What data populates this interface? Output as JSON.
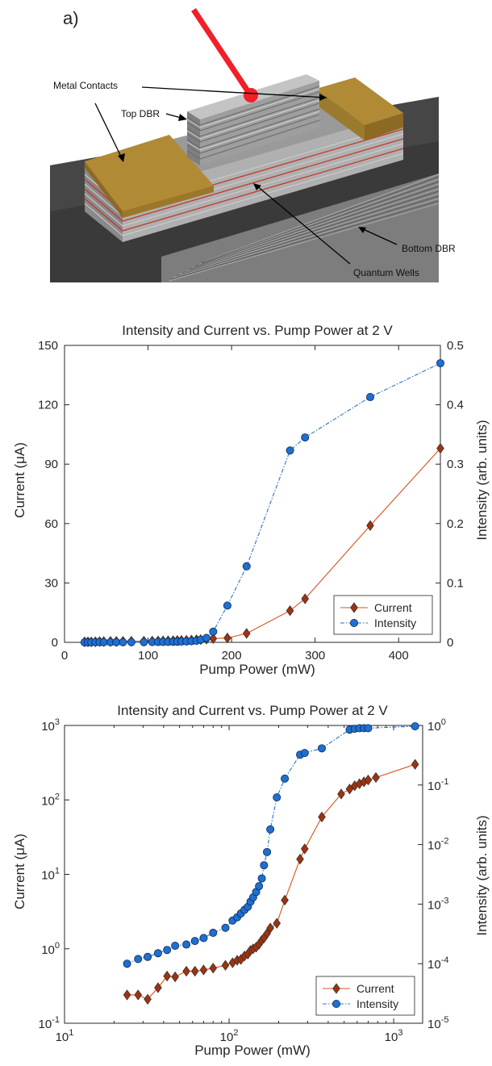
{
  "figure": {
    "panel_a": {
      "label": "a)",
      "annotations": {
        "metal_contacts": "Metal Contacts",
        "top_dbr": "Top DBR",
        "bottom_dbr": "Bottom DBR",
        "quantum_wells": "Quantum Wells"
      },
      "colors": {
        "laser": "#f0202a",
        "contact": "#b18a36",
        "substrate": "#3b3b3b",
        "dbr": "#8c8c8c",
        "quantum_well": "#c0392b"
      }
    }
  },
  "chart_data": [
    {
      "type": "line",
      "title": "Intensity and Current vs. Pump Power at 2 V",
      "xlabel": "Pump Power (mW)",
      "ylabel_left": "Current (μA)",
      "ylabel_right": "Intensity (arb. units)",
      "xlim": [
        0,
        450
      ],
      "ylim_left": [
        0,
        150
      ],
      "ylim_right": [
        0,
        0.5
      ],
      "xticks": [
        "0",
        "100",
        "200",
        "300",
        "400"
      ],
      "yticks_left": [
        "0",
        "30",
        "60",
        "90",
        "120",
        "150"
      ],
      "yticks_right": [
        "0",
        "0.1",
        "0.2",
        "0.3",
        "0.4",
        "0.5"
      ],
      "legend_position": "bottom-right",
      "series": [
        {
          "name": "Current",
          "axis": "left",
          "color": "#d95319",
          "marker_color": "#a0320e",
          "marker": "diamond",
          "line": "solid",
          "x": [
            24,
            28,
            32,
            37,
            42,
            47,
            55,
            62,
            70,
            80,
            95,
            105,
            112,
            118,
            124,
            130,
            135,
            140,
            146,
            152,
            158,
            163,
            170,
            178,
            195,
            218,
            270,
            288,
            366,
            450
          ],
          "y": [
            0.24,
            0.24,
            0.21,
            0.3,
            0.43,
            0.42,
            0.5,
            0.5,
            0.52,
            0.55,
            0.6,
            0.65,
            0.7,
            0.72,
            0.8,
            0.85,
            0.95,
            1.0,
            1.05,
            1.15,
            1.3,
            1.4,
            1.6,
            1.9,
            2.2,
            4.5,
            16,
            22,
            59,
            98
          ]
        },
        {
          "name": "Intensity",
          "axis": "right",
          "color": "#2a72c8",
          "marker_color": "#1f6fd0",
          "marker": "circle",
          "line": "dashdot",
          "x": [
            24,
            28,
            32,
            37,
            42,
            47,
            55,
            62,
            70,
            80,
            95,
            105,
            112,
            118,
            124,
            130,
            135,
            140,
            146,
            152,
            158,
            163,
            170,
            178,
            195,
            218,
            270,
            288,
            366,
            450
          ],
          "y": [
            0.0001,
            0.00012,
            0.00013,
            0.00015,
            0.00017,
            0.0002,
            0.00021,
            0.00024,
            0.00027,
            0.00033,
            0.0004,
            0.00053,
            0.0006,
            0.0007,
            0.0008,
            0.0009,
            0.0011,
            0.0013,
            0.0016,
            0.002,
            0.0027,
            0.0045,
            0.0075,
            0.018,
            0.062,
            0.128,
            0.323,
            0.345,
            0.413,
            0.47
          ]
        }
      ]
    },
    {
      "type": "line",
      "title": "Intensity and Current vs. Pump Power at 2 V",
      "xlabel": "Pump Power (mW)",
      "ylabel_left": "Current (μA)",
      "ylabel_right": "Intensity (arb. units)",
      "xscale": "log",
      "yscale": "log",
      "xlim": [
        10,
        1500
      ],
      "ylim_left": [
        0.1,
        1000
      ],
      "ylim_right": [
        1e-05,
        1
      ],
      "xticks": [
        {
          "base": "10",
          "exp": "1"
        },
        {
          "base": "10",
          "exp": "2"
        },
        {
          "base": "10",
          "exp": "3"
        }
      ],
      "yticks_left": [
        {
          "base": "10",
          "exp": "-1"
        },
        {
          "base": "10",
          "exp": "0"
        },
        {
          "base": "10",
          "exp": "1"
        },
        {
          "base": "10",
          "exp": "2"
        },
        {
          "base": "10",
          "exp": "3"
        }
      ],
      "yticks_right": [
        {
          "base": "10",
          "exp": "-5"
        },
        {
          "base": "10",
          "exp": "-4"
        },
        {
          "base": "10",
          "exp": "-3"
        },
        {
          "base": "10",
          "exp": "-2"
        },
        {
          "base": "10",
          "exp": "-1"
        },
        {
          "base": "10",
          "exp": "0"
        }
      ],
      "legend_position": "bottom-right",
      "series": [
        {
          "name": "Current",
          "axis": "left",
          "color": "#d95319",
          "marker_color": "#a0320e",
          "marker": "diamond",
          "line": "solid",
          "x": [
            24,
            28,
            32,
            37,
            42,
            47,
            55,
            62,
            70,
            80,
            95,
            105,
            112,
            118,
            124,
            130,
            135,
            140,
            146,
            152,
            158,
            163,
            170,
            178,
            195,
            218,
            270,
            288,
            366,
            480,
            540,
            580,
            620,
            660,
            700,
            780,
            1350
          ],
          "y": [
            0.24,
            0.24,
            0.21,
            0.3,
            0.43,
            0.42,
            0.5,
            0.5,
            0.52,
            0.55,
            0.6,
            0.65,
            0.7,
            0.72,
            0.8,
            0.85,
            0.95,
            1.0,
            1.05,
            1.15,
            1.3,
            1.4,
            1.6,
            1.9,
            2.2,
            4.5,
            16,
            22,
            59,
            120,
            140,
            155,
            165,
            175,
            185,
            200,
            300
          ]
        },
        {
          "name": "Intensity",
          "axis": "right",
          "color": "#2a72c8",
          "marker_color": "#1f6fd0",
          "marker": "circle",
          "line": "dashdot",
          "x": [
            24,
            28,
            32,
            37,
            42,
            47,
            55,
            62,
            70,
            80,
            95,
            105,
            112,
            118,
            124,
            130,
            135,
            140,
            146,
            152,
            158,
            163,
            170,
            178,
            195,
            218,
            270,
            288,
            366,
            540,
            580,
            620,
            660,
            700,
            1350
          ],
          "y": [
            0.0001,
            0.00012,
            0.00013,
            0.00015,
            0.00017,
            0.0002,
            0.00021,
            0.00024,
            0.00027,
            0.00033,
            0.0004,
            0.00053,
            0.0006,
            0.0007,
            0.0008,
            0.0009,
            0.0011,
            0.0013,
            0.0016,
            0.002,
            0.0027,
            0.0045,
            0.0075,
            0.018,
            0.062,
            0.128,
            0.323,
            0.345,
            0.413,
            0.85,
            0.88,
            0.9,
            0.9,
            0.9,
            0.97
          ]
        }
      ]
    }
  ]
}
